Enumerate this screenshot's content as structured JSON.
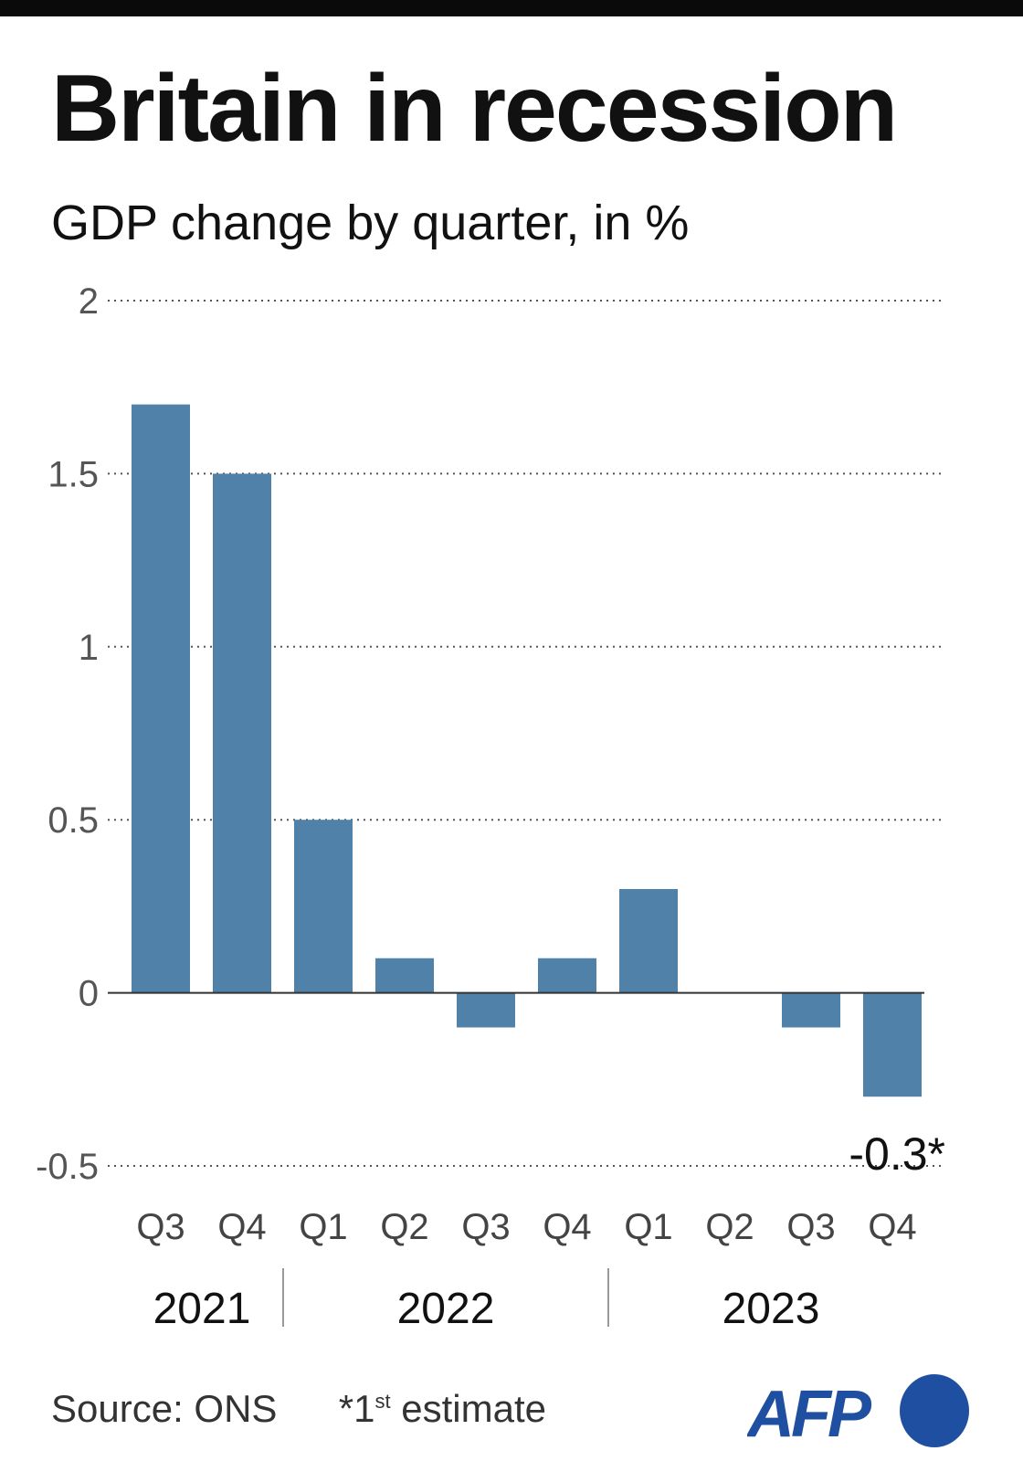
{
  "title": "Britain in recession",
  "subtitle": "GDP change by quarter, in %",
  "chart_data": {
    "type": "bar",
    "title": "Britain in recession",
    "subtitle": "GDP change by quarter, in %",
    "categories": [
      "Q3 2021",
      "Q4 2021",
      "Q1 2022",
      "Q2 2022",
      "Q3 2022",
      "Q4 2022",
      "Q1 2023",
      "Q2 2023",
      "Q3 2023",
      "Q4 2023"
    ],
    "tick_labels": [
      "Q3",
      "Q4",
      "Q1",
      "Q2",
      "Q3",
      "Q4",
      "Q1",
      "Q2",
      "Q3",
      "Q4"
    ],
    "years": [
      {
        "label": "2021",
        "quarters": 2
      },
      {
        "label": "2022",
        "quarters": 4
      },
      {
        "label": "2023",
        "quarters": 4
      }
    ],
    "values": [
      1.7,
      1.5,
      0.5,
      0.1,
      -0.1,
      0.1,
      0.3,
      0,
      -0.1,
      -0.3
    ],
    "ylim": [
      -0.5,
      2
    ],
    "yticks": [
      2,
      1.5,
      1,
      0.5,
      0,
      -0.5
    ],
    "ytick_labels": [
      "2",
      "1.5",
      "1",
      "0.5",
      "0",
      "-0.5"
    ],
    "grid": "dotted horizontal",
    "annotation": {
      "label": "-0.3*",
      "category": "Q4 2023"
    },
    "bar_color": "#5081a8"
  },
  "footer": {
    "source": "Source: ONS",
    "note_prefix": "*1",
    "note_sup": "st",
    "note_suffix": " estimate"
  },
  "logo": {
    "text": "AFP",
    "color": "#1e4fa0"
  }
}
